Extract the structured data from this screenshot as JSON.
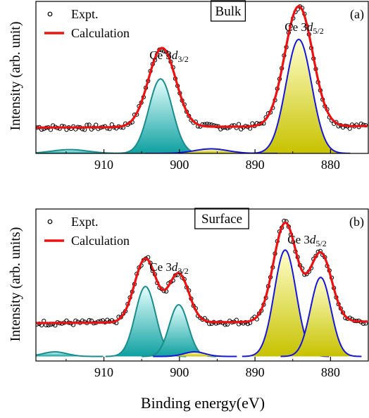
{
  "colors": {
    "calc": "#ee1111",
    "expt_marker": "#000000",
    "d32_stroke": "#1a8c8c",
    "d32_fill_light": "#e6ffff",
    "d32_fill_dark": "#0fa0a0",
    "d52_stroke": "#1515dd",
    "d52_fill_light": "#ffffcc",
    "d52_fill_dark": "#c7c200"
  },
  "xaxis_label": "Binding energy(eV)",
  "chart_data": [
    {
      "type": "line",
      "panel": "(a)",
      "box_label": "Bulk",
      "ylabel": "Intensity (arb. unit)",
      "peak_labels": {
        "d32": "3/2",
        "d52": "5/2",
        "prefix": "Ce 3",
        "d": "d"
      },
      "legend": {
        "expt": "Expt.",
        "calc": "Calculation",
        "placement": "top-left"
      },
      "xlim": [
        919,
        875
      ],
      "xticks": [
        910,
        900,
        890,
        880
      ],
      "ylim": [
        0,
        1.0
      ],
      "baseline": 0.17,
      "components": [
        {
          "name": "",
          "role": "d32",
          "center": 902.5,
          "sigma": 1.55,
          "amp": 0.49
        },
        {
          "name": "",
          "role": "d32",
          "center": 914.5,
          "sigma": 2.4,
          "amp": 0.025
        },
        {
          "name": "",
          "role": "d52",
          "center": 884.2,
          "sigma": 1.7,
          "amp": 0.75
        },
        {
          "name": "",
          "role": "d52",
          "center": 895.8,
          "sigma": 2.2,
          "amp": 0.03
        }
      ],
      "calculation": {
        "baseline_left": 0.17,
        "baseline_right": 0.18,
        "peaks": [
          {
            "center": 902.3,
            "sigma": 1.8,
            "amp": 0.52
          },
          {
            "center": 884.2,
            "sigma": 1.85,
            "amp": 0.79
          }
        ]
      }
    },
    {
      "type": "line",
      "panel": "(b)",
      "box_label": "Surface",
      "ylabel": "Intensity (arb. units)",
      "peak_labels": {
        "d32": "3/2",
        "d52": "5/2",
        "prefix": "Ce 3",
        "d": "d"
      },
      "legend": {
        "expt": "Expt.",
        "calc": "Calculation",
        "placement": "top-left"
      },
      "xlim": [
        919,
        875
      ],
      "xticks": [
        910,
        900,
        890,
        880
      ],
      "ylim": [
        0,
        1.0
      ],
      "baseline": 0.2,
      "components": [
        {
          "name": "",
          "role": "d32",
          "center": 904.5,
          "sigma": 1.35,
          "amp": 0.46
        },
        {
          "name": "",
          "role": "d32",
          "center": 900.1,
          "sigma": 1.25,
          "amp": 0.34
        },
        {
          "name": "",
          "role": "d32",
          "center": 916.5,
          "sigma": 1.6,
          "amp": 0.03
        },
        {
          "name": "",
          "role": "d52",
          "center": 886.0,
          "sigma": 1.45,
          "amp": 0.7
        },
        {
          "name": "",
          "role": "d52",
          "center": 881.3,
          "sigma": 1.35,
          "amp": 0.52
        },
        {
          "name": "",
          "role": "d52",
          "center": 898.0,
          "sigma": 1.4,
          "amp": 0.03
        }
      ],
      "calculation": {
        "baseline_left": 0.25,
        "baseline_right": 0.26,
        "peaks": [
          {
            "center": 904.5,
            "sigma": 1.45,
            "amp": 0.42
          },
          {
            "center": 900.1,
            "sigma": 1.35,
            "amp": 0.32
          },
          {
            "center": 886.0,
            "sigma": 1.55,
            "amp": 0.65
          },
          {
            "center": 881.3,
            "sigma": 1.45,
            "amp": 0.45
          }
        ]
      }
    }
  ]
}
